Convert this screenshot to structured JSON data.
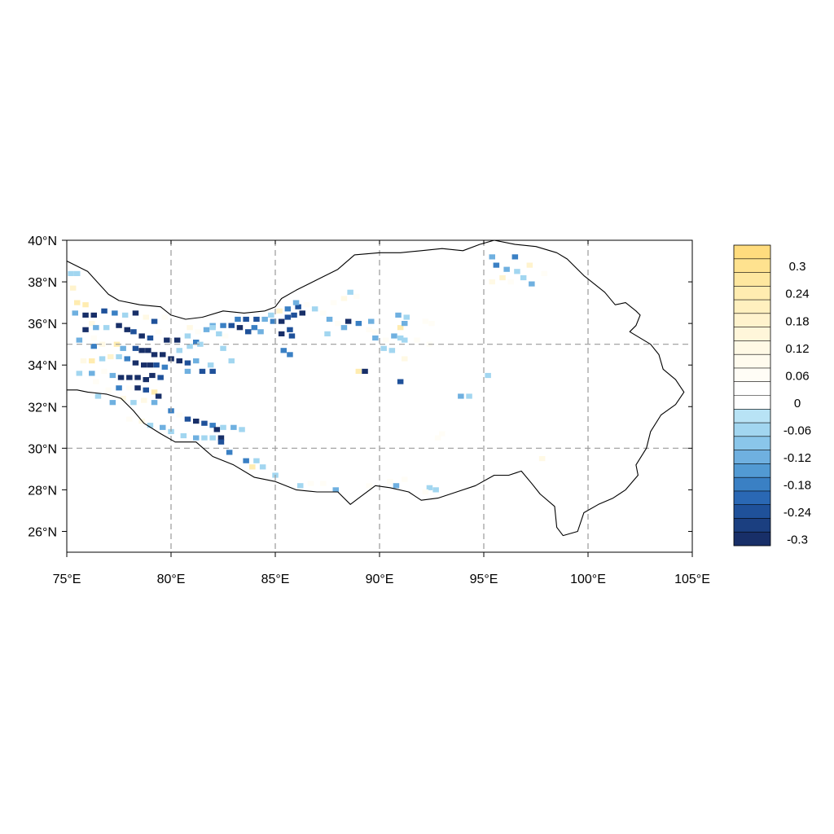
{
  "map": {
    "lon_range": [
      75,
      105
    ],
    "lat_range": [
      25,
      40
    ],
    "x_ticks": [
      {
        "value": 75,
        "label": "75°E"
      },
      {
        "value": 80,
        "label": "80°E"
      },
      {
        "value": 85,
        "label": "85°E"
      },
      {
        "value": 90,
        "label": "90°E"
      },
      {
        "value": 95,
        "label": "95°E"
      },
      {
        "value": 100,
        "label": "100°E"
      },
      {
        "value": 105,
        "label": "105°E"
      }
    ],
    "y_ticks": [
      {
        "value": 26,
        "label": "26°N"
      },
      {
        "value": 28,
        "label": "28°N"
      },
      {
        "value": 30,
        "label": "30°N"
      },
      {
        "value": 32,
        "label": "32°N"
      },
      {
        "value": 34,
        "label": "34°N"
      },
      {
        "value": 36,
        "label": "36°N"
      },
      {
        "value": 38,
        "label": "38°N"
      },
      {
        "value": 40,
        "label": "40°N"
      }
    ],
    "grid_lon": [
      80,
      85,
      90,
      95,
      100
    ],
    "grid_lat": [
      30,
      35
    ],
    "grid_style": "dashed gray",
    "boundary": [
      [
        75,
        39
      ],
      [
        76,
        38.5
      ],
      [
        77,
        37.4
      ],
      [
        77.5,
        37.1
      ],
      [
        78.5,
        36.9
      ],
      [
        79.5,
        36.8
      ],
      [
        80,
        36.4
      ],
      [
        80.7,
        36.2
      ],
      [
        81.5,
        36.3
      ],
      [
        82.5,
        36.6
      ],
      [
        83.5,
        36.5
      ],
      [
        84.5,
        36.6
      ],
      [
        85,
        36.8
      ],
      [
        85.3,
        37.2
      ],
      [
        86,
        37.6
      ],
      [
        87,
        38.1
      ],
      [
        88,
        38.6
      ],
      [
        88.8,
        39.3
      ],
      [
        90,
        39.4
      ],
      [
        91,
        39.4
      ],
      [
        92,
        39.5
      ],
      [
        93,
        39.6
      ],
      [
        94,
        39.5
      ],
      [
        94.8,
        39.8
      ],
      [
        95.5,
        40
      ],
      [
        96.5,
        39.8
      ],
      [
        97.5,
        39.7
      ],
      [
        98.5,
        39.4
      ],
      [
        99,
        39.1
      ],
      [
        99.8,
        38.3
      ],
      [
        100.8,
        37.5
      ],
      [
        101.3,
        36.9
      ],
      [
        101.8,
        37
      ],
      [
        102.3,
        36.6
      ],
      [
        102.5,
        36.4
      ],
      [
        102.3,
        35.9
      ],
      [
        102,
        35.6
      ],
      [
        103,
        35
      ],
      [
        103.4,
        34.5
      ],
      [
        103.6,
        33.8
      ],
      [
        104.2,
        33.3
      ],
      [
        104.6,
        32.7
      ],
      [
        104.2,
        32.1
      ],
      [
        103.5,
        31.6
      ],
      [
        103,
        30.8
      ],
      [
        102.8,
        30
      ],
      [
        102.3,
        29.2
      ],
      [
        102.4,
        28.7
      ],
      [
        101.8,
        28
      ],
      [
        101.2,
        27.6
      ],
      [
        100.5,
        27.3
      ],
      [
        99.8,
        26.9
      ],
      [
        99.5,
        26
      ],
      [
        98.8,
        25.8
      ],
      [
        98.5,
        26.2
      ],
      [
        98.4,
        27.2
      ],
      [
        97.7,
        27.8
      ],
      [
        97.3,
        28.3
      ],
      [
        96.8,
        28.9
      ],
      [
        96.2,
        28.7
      ],
      [
        95.5,
        28.7
      ],
      [
        94.6,
        28.2
      ],
      [
        93.7,
        27.9
      ],
      [
        92.8,
        27.6
      ],
      [
        92,
        27.5
      ],
      [
        91.4,
        27.9
      ],
      [
        90.5,
        28.1
      ],
      [
        89.8,
        28.2
      ],
      [
        89,
        27.6
      ],
      [
        88.6,
        27.3
      ],
      [
        88,
        27.9
      ],
      [
        87,
        27.9
      ],
      [
        86,
        28
      ],
      [
        85,
        28.4
      ],
      [
        84,
        28.6
      ],
      [
        83,
        29.2
      ],
      [
        82,
        29.6
      ],
      [
        81.2,
        30.3
      ],
      [
        80.2,
        30.3
      ],
      [
        79.5,
        30.7
      ],
      [
        78.7,
        31.2
      ],
      [
        78.2,
        31.8
      ],
      [
        77.6,
        32.4
      ],
      [
        76.9,
        32.6
      ],
      [
        76,
        32.7
      ],
      [
        75.5,
        32.8
      ],
      [
        75,
        32.8
      ]
    ],
    "cells": [
      [
        75.2,
        38.4,
        -0.06
      ],
      [
        75.5,
        38.4,
        -0.06
      ],
      [
        75.3,
        37.7,
        0.18
      ],
      [
        75.5,
        37.0,
        0.24
      ],
      [
        75.9,
        36.9,
        0.24
      ],
      [
        75.4,
        36.5,
        -0.12
      ],
      [
        75.9,
        36.4,
        -0.3
      ],
      [
        76.3,
        36.4,
        -0.3
      ],
      [
        76.8,
        36.6,
        -0.24
      ],
      [
        77.3,
        36.5,
        -0.18
      ],
      [
        77.8,
        36.4,
        -0.06
      ],
      [
        78.3,
        36.5,
        -0.3
      ],
      [
        78.8,
        36.3,
        0.12
      ],
      [
        79.2,
        36.1,
        -0.24
      ],
      [
        79.7,
        36.3,
        0.06
      ],
      [
        76.2,
        36.0,
        0.12
      ],
      [
        75.9,
        35.7,
        -0.3
      ],
      [
        76.4,
        35.8,
        -0.12
      ],
      [
        76.9,
        35.8,
        -0.06
      ],
      [
        77.5,
        35.9,
        -0.3
      ],
      [
        77.9,
        35.7,
        -0.3
      ],
      [
        78.2,
        35.6,
        -0.24
      ],
      [
        78.6,
        35.4,
        -0.3
      ],
      [
        79.0,
        35.3,
        -0.24
      ],
      [
        79.4,
        35.6,
        0.06
      ],
      [
        79.8,
        35.2,
        -0.3
      ],
      [
        80.3,
        35.2,
        -0.3
      ],
      [
        80.8,
        35.4,
        -0.06
      ],
      [
        81.2,
        35.1,
        -0.18
      ],
      [
        75.6,
        35.2,
        -0.12
      ],
      [
        76.3,
        35.3,
        0.06
      ],
      [
        76.7,
        35.0,
        0.12
      ],
      [
        77.4,
        35.0,
        0.24
      ],
      [
        77.7,
        34.8,
        -0.12
      ],
      [
        78.3,
        34.8,
        -0.24
      ],
      [
        78.6,
        34.7,
        -0.3
      ],
      [
        78.9,
        34.7,
        -0.3
      ],
      [
        79.2,
        34.5,
        -0.3
      ],
      [
        79.6,
        34.5,
        -0.3
      ],
      [
        80.0,
        34.3,
        -0.3
      ],
      [
        80.4,
        34.2,
        -0.3
      ],
      [
        80.8,
        34.1,
        -0.24
      ],
      [
        81.2,
        34.2,
        -0.12
      ],
      [
        75.8,
        34.2,
        0.12
      ],
      [
        76.2,
        34.2,
        0.24
      ],
      [
        76.7,
        34.3,
        -0.06
      ],
      [
        77.1,
        34.4,
        0.18
      ],
      [
        77.5,
        34.4,
        -0.06
      ],
      [
        77.9,
        34.3,
        -0.18
      ],
      [
        78.3,
        34.1,
        -0.3
      ],
      [
        78.7,
        34.0,
        -0.3
      ],
      [
        79.0,
        34.0,
        -0.3
      ],
      [
        79.3,
        34.0,
        -0.24
      ],
      [
        79.7,
        33.9,
        -0.18
      ],
      [
        76.2,
        33.6,
        -0.12
      ],
      [
        76.8,
        33.7,
        0.06
      ],
      [
        77.2,
        33.5,
        -0.12
      ],
      [
        77.6,
        33.4,
        -0.3
      ],
      [
        78.0,
        33.4,
        -0.3
      ],
      [
        78.4,
        33.4,
        -0.3
      ],
      [
        78.8,
        33.3,
        -0.3
      ],
      [
        79.1,
        33.5,
        -0.3
      ],
      [
        79.5,
        33.4,
        -0.24
      ],
      [
        77.5,
        32.9,
        -0.18
      ],
      [
        78.0,
        32.9,
        0.06
      ],
      [
        78.4,
        32.9,
        -0.3
      ],
      [
        78.8,
        32.8,
        -0.24
      ],
      [
        79.2,
        32.7,
        0.24
      ],
      [
        76.5,
        32.5,
        -0.06
      ],
      [
        77.2,
        32.2,
        -0.12
      ],
      [
        77.7,
        32.4,
        0.12
      ],
      [
        78.2,
        32.2,
        -0.06
      ],
      [
        78.7,
        32.3,
        0.12
      ],
      [
        79.2,
        32.2,
        -0.12
      ],
      [
        79.4,
        32.5,
        -0.3
      ],
      [
        80.0,
        31.8,
        -0.18
      ],
      [
        80.4,
        31.6,
        0.06
      ],
      [
        80.8,
        31.4,
        -0.24
      ],
      [
        81.2,
        31.3,
        -0.3
      ],
      [
        81.6,
        31.2,
        -0.24
      ],
      [
        82.0,
        31.1,
        -0.18
      ],
      [
        82.2,
        30.9,
        -0.3
      ],
      [
        82.5,
        31.0,
        -0.06
      ],
      [
        78.0,
        31.4,
        0.06
      ],
      [
        78.6,
        31.3,
        0.12
      ],
      [
        79.0,
        31.1,
        -0.06
      ],
      [
        79.6,
        31.0,
        -0.12
      ],
      [
        80.0,
        30.8,
        -0.06
      ],
      [
        80.6,
        30.6,
        -0.06
      ],
      [
        81.2,
        30.5,
        -0.12
      ],
      [
        81.6,
        30.5,
        -0.06
      ],
      [
        82.0,
        30.5,
        -0.06
      ],
      [
        82.4,
        30.5,
        -0.3
      ],
      [
        82.4,
        30.3,
        -0.24
      ],
      [
        82.8,
        29.8,
        -0.18
      ],
      [
        80.4,
        34.7,
        -0.06
      ],
      [
        80.9,
        34.9,
        -0.06
      ],
      [
        81.4,
        35.0,
        -0.06
      ],
      [
        80.9,
        35.8,
        0.12
      ],
      [
        81.3,
        35.6,
        0.06
      ],
      [
        81.7,
        35.7,
        -0.12
      ],
      [
        82.0,
        35.9,
        -0.12
      ],
      [
        82.3,
        35.5,
        -0.06
      ],
      [
        82.6,
        35.4,
        0.06
      ],
      [
        82.5,
        35.9,
        -0.18
      ],
      [
        82.9,
        35.9,
        -0.24
      ],
      [
        83.3,
        35.8,
        -0.3
      ],
      [
        83.7,
        35.6,
        -0.24
      ],
      [
        84.0,
        35.8,
        -0.18
      ],
      [
        84.3,
        35.6,
        -0.12
      ],
      [
        83.2,
        36.2,
        -0.18
      ],
      [
        83.6,
        36.2,
        -0.24
      ],
      [
        84.1,
        36.2,
        -0.24
      ],
      [
        84.5,
        36.2,
        -0.12
      ],
      [
        84.9,
        36.1,
        -0.18
      ],
      [
        85.3,
        36.1,
        -0.3
      ],
      [
        85.6,
        36.3,
        -0.24
      ],
      [
        85.9,
        36.4,
        -0.24
      ],
      [
        84.8,
        36.4,
        -0.06
      ],
      [
        85.2,
        36.6,
        0.18
      ],
      [
        85.6,
        36.7,
        -0.18
      ],
      [
        86.1,
        36.8,
        -0.24
      ],
      [
        86.3,
        36.5,
        -0.3
      ],
      [
        86.0,
        37.0,
        -0.12
      ],
      [
        85.7,
        35.7,
        -0.24
      ],
      [
        85.3,
        35.5,
        -0.3
      ],
      [
        85.8,
        35.4,
        -0.24
      ],
      [
        86.5,
        36.9,
        0.06
      ],
      [
        85.4,
        34.7,
        -0.18
      ],
      [
        85.7,
        34.5,
        -0.18
      ],
      [
        83.6,
        29.4,
        -0.18
      ],
      [
        84.1,
        29.4,
        -0.06
      ],
      [
        84.4,
        29.1,
        -0.06
      ],
      [
        83.9,
        29.1,
        0.24
      ],
      [
        85.0,
        28.7,
        -0.06
      ],
      [
        86.9,
        36.7,
        -0.06
      ],
      [
        87.3,
        36.5,
        0.06
      ],
      [
        87.6,
        36.2,
        -0.12
      ],
      [
        88.0,
        36.0,
        0.06
      ],
      [
        88.3,
        35.8,
        -0.12
      ],
      [
        87.8,
        37.0,
        0.06
      ],
      [
        88.3,
        37.2,
        0.12
      ],
      [
        88.6,
        37.5,
        -0.06
      ],
      [
        88.9,
        37.3,
        0.06
      ],
      [
        87.5,
        35.5,
        -0.06
      ],
      [
        88.5,
        36.1,
        -0.3
      ],
      [
        89.0,
        36.0,
        -0.18
      ],
      [
        89.6,
        36.1,
        -0.12
      ],
      [
        89.5,
        35.7,
        0.06
      ],
      [
        89.0,
        33.7,
        0.24
      ],
      [
        89.3,
        33.7,
        -0.3
      ],
      [
        89.8,
        35.3,
        -0.12
      ],
      [
        90.3,
        35.2,
        0.06
      ],
      [
        90.7,
        35.4,
        -0.12
      ],
      [
        91.0,
        35.3,
        -0.06
      ],
      [
        91.0,
        35.8,
        0.24
      ],
      [
        91.2,
        36.0,
        -0.12
      ],
      [
        90.9,
        36.4,
        -0.12
      ],
      [
        91.3,
        36.3,
        -0.06
      ],
      [
        90.2,
        34.8,
        -0.06
      ],
      [
        90.6,
        34.7,
        -0.06
      ],
      [
        91.2,
        34.3,
        0.12
      ],
      [
        91.8,
        35.2,
        0.06
      ],
      [
        91.2,
        35.2,
        -0.06
      ],
      [
        89.8,
        35.6,
        0.06
      ],
      [
        92.4,
        35.0,
        0.06
      ],
      [
        91.0,
        33.2,
        -0.24
      ],
      [
        92.2,
        36.1,
        0.06
      ],
      [
        92.5,
        36.0,
        0.06
      ],
      [
        93.9,
        32.5,
        -0.12
      ],
      [
        94.3,
        32.5,
        -0.06
      ],
      [
        95.2,
        33.5,
        -0.06
      ],
      [
        93.0,
        30.7,
        0.06
      ],
      [
        92.8,
        30.5,
        0.06
      ],
      [
        95.4,
        39.2,
        -0.12
      ],
      [
        95.6,
        38.8,
        -0.18
      ],
      [
        96.1,
        38.6,
        -0.12
      ],
      [
        96.6,
        38.5,
        -0.06
      ],
      [
        96.5,
        39.2,
        -0.18
      ],
      [
        97.2,
        38.8,
        0.18
      ],
      [
        96.9,
        38.2,
        -0.06
      ],
      [
        97.3,
        37.9,
        -0.12
      ],
      [
        95.4,
        38.0,
        0.12
      ],
      [
        95.9,
        38.2,
        0.18
      ],
      [
        96.3,
        38.0,
        0.06
      ],
      [
        97.9,
        38.4,
        0.06
      ],
      [
        97.8,
        29.5,
        0.12
      ],
      [
        86.2,
        28.2,
        -0.06
      ],
      [
        86.7,
        28.3,
        0.06
      ],
      [
        87.3,
        28.3,
        0.06
      ],
      [
        87.9,
        28.0,
        -0.12
      ],
      [
        89.5,
        28.2,
        0.06
      ],
      [
        90.5,
        28.4,
        0.06
      ],
      [
        90.8,
        28.2,
        -0.12
      ],
      [
        91.2,
        28.5,
        0.06
      ],
      [
        92.4,
        28.1,
        -0.06
      ],
      [
        92.7,
        28.0,
        -0.06
      ],
      [
        92.2,
        27.9,
        0.06
      ],
      [
        82.0,
        35.8,
        -0.06
      ],
      [
        82.5,
        34.8,
        -0.06
      ],
      [
        82.9,
        34.2,
        -0.06
      ],
      [
        81.9,
        34.0,
        -0.06
      ],
      [
        81.5,
        33.7,
        -0.24
      ],
      [
        82.0,
        33.7,
        -0.24
      ],
      [
        80.8,
        33.7,
        -0.12
      ],
      [
        76.3,
        34.9,
        -0.18
      ],
      [
        75.6,
        33.6,
        -0.06
      ],
      [
        76.4,
        33.2,
        0.06
      ],
      [
        77.0,
        32.8,
        0.06
      ],
      [
        83.0,
        31.0,
        -0.12
      ],
      [
        83.4,
        30.9,
        -0.06
      ]
    ]
  },
  "colorbar": {
    "levels": [
      {
        "label": "",
        "color": "#ffdc7e"
      },
      {
        "label": "0.3",
        "color": "#fee28f"
      },
      {
        "label": "",
        "color": "#fee79f"
      },
      {
        "label": "0.24",
        "color": "#ffecb0"
      },
      {
        "label": "",
        "color": "#fff0bf"
      },
      {
        "label": "0.18",
        "color": "#fff3cd"
      },
      {
        "label": "",
        "color": "#fff6da"
      },
      {
        "label": "0.12",
        "color": "#fff9e5"
      },
      {
        "label": "",
        "color": "#fffbee"
      },
      {
        "label": "0.06",
        "color": "#fffdf6"
      },
      {
        "label": "",
        "color": "#ffffff"
      },
      {
        "label": "0",
        "color": "#ffffff"
      },
      {
        "label": "",
        "color": "#b8e3f5"
      },
      {
        "label": "-0.06",
        "color": "#a2d6f0"
      },
      {
        "label": "",
        "color": "#8ac6ea"
      },
      {
        "label": "-0.12",
        "color": "#6fb0e0"
      },
      {
        "label": "",
        "color": "#529ad3"
      },
      {
        "label": "-0.18",
        "color": "#3a80c4"
      },
      {
        "label": "",
        "color": "#2a68b4"
      },
      {
        "label": "-0.24",
        "color": "#1f519a"
      },
      {
        "label": "",
        "color": "#1b3f80"
      },
      {
        "label": "-0.3",
        "color": "#182f68"
      }
    ]
  }
}
